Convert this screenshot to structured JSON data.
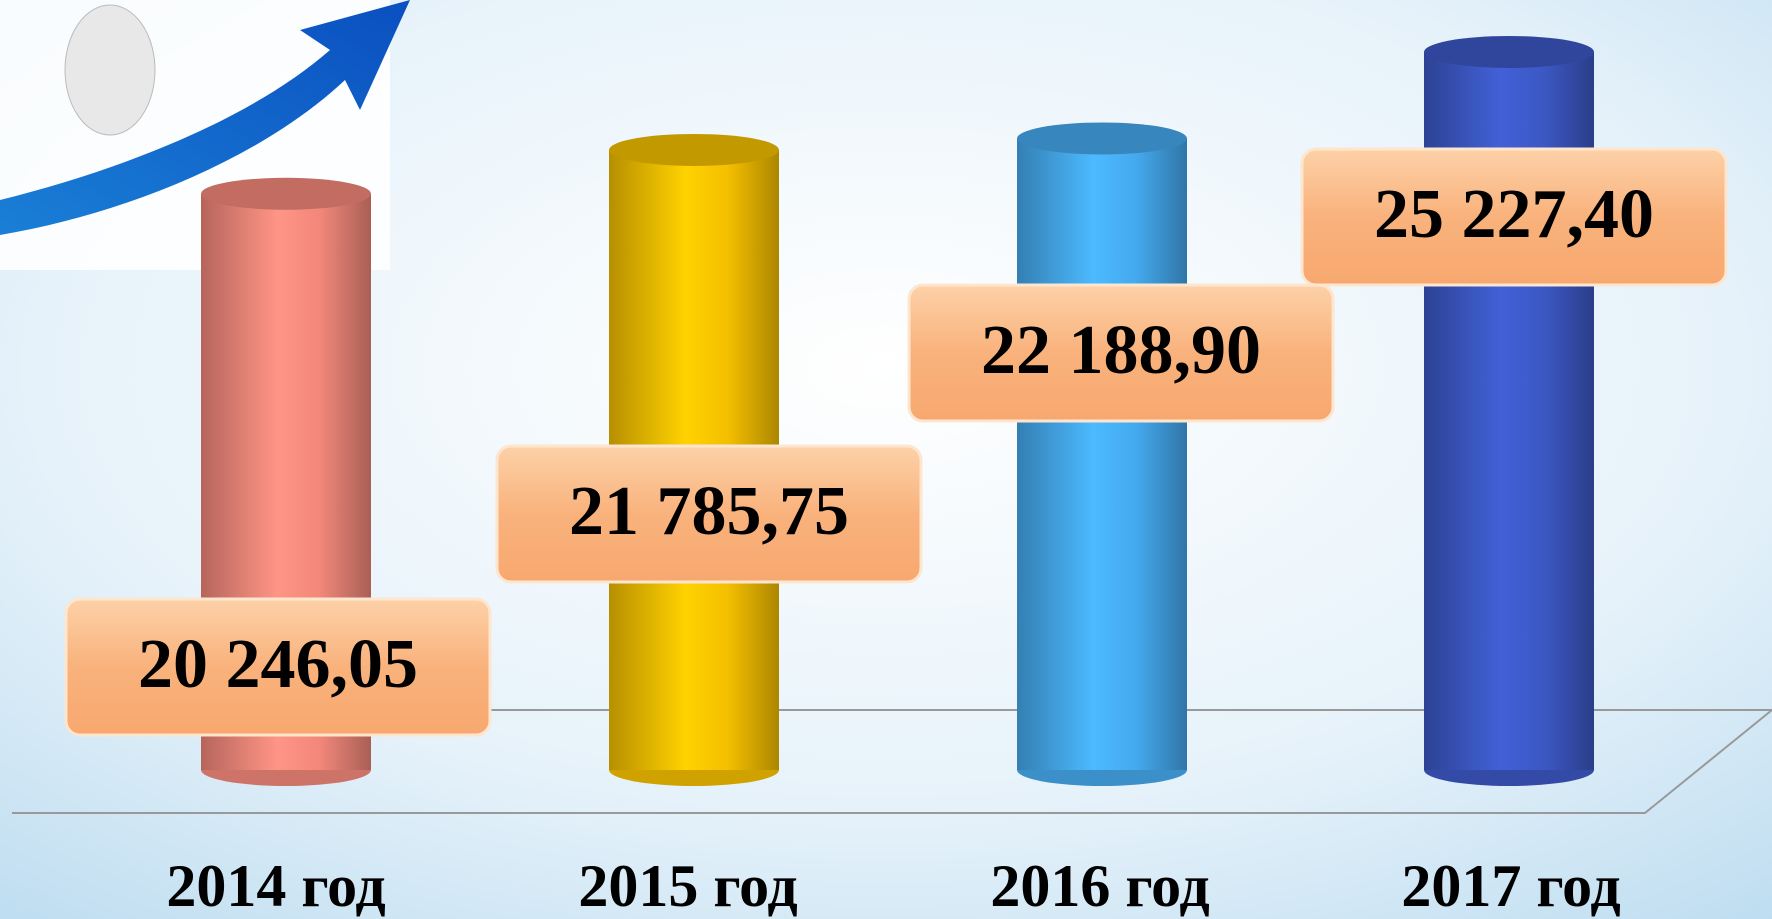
{
  "chart_data": {
    "type": "bar",
    "categories": [
      "2014 год",
      "2015 год",
      "2016 год",
      "2017 год"
    ],
    "values": [
      20246.05,
      21785.75,
      22188.9,
      25227.4
    ],
    "value_labels": [
      "20 246,05",
      "21 785,75",
      "22 188,90",
      "25 227,40"
    ],
    "colors": [
      "#f2877a",
      "#f4bf00",
      "#45a9ee",
      "#3c58c4"
    ],
    "ylim": [
      0,
      26000
    ]
  }
}
